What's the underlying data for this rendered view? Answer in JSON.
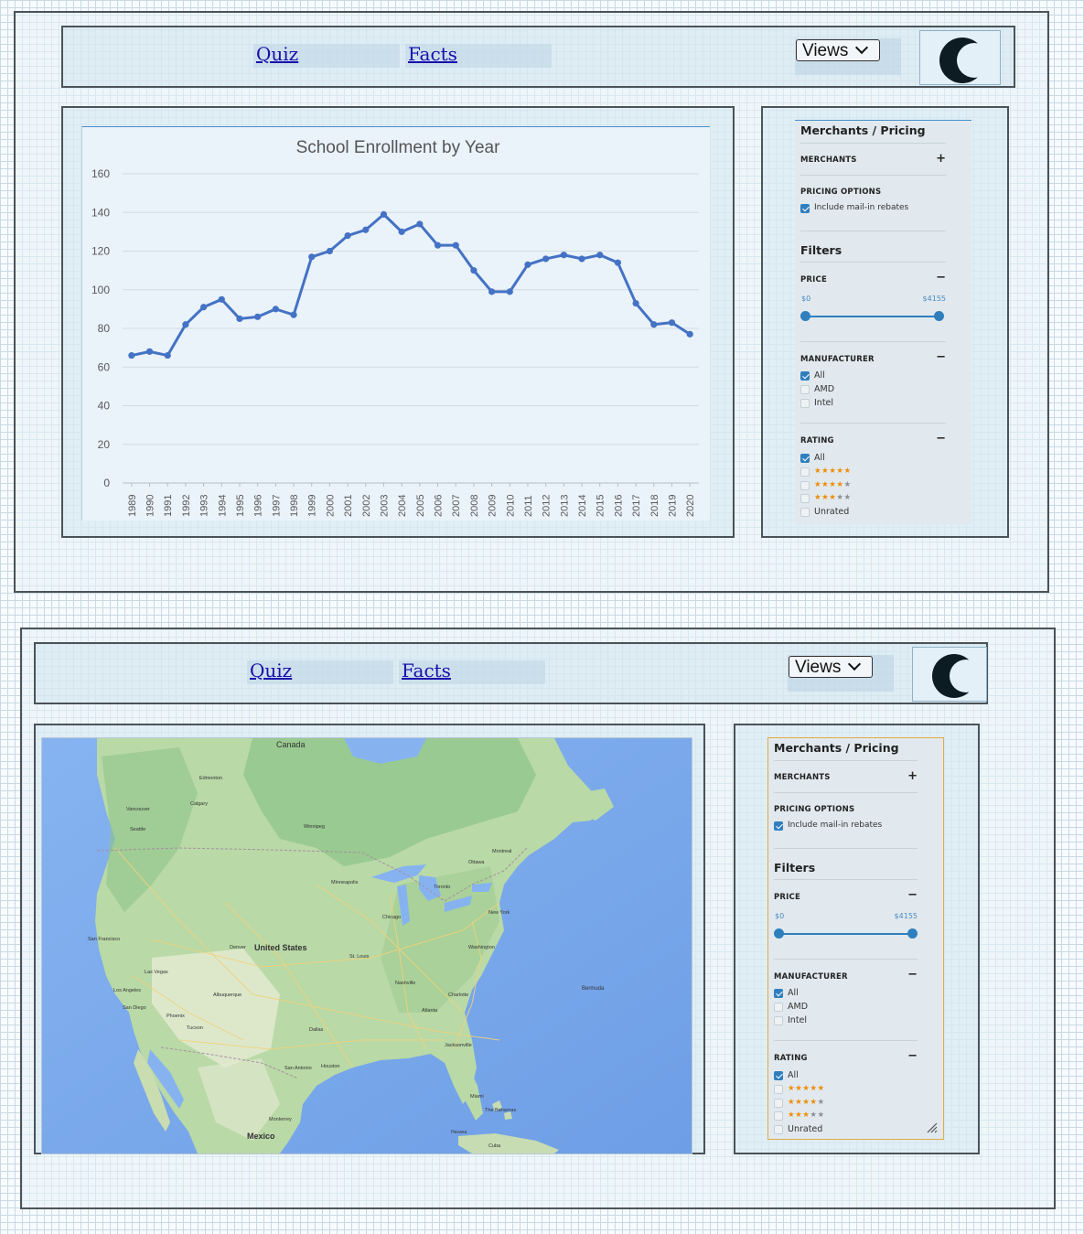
{
  "nav": {
    "quiz": "Quiz",
    "facts": "Facts",
    "views": "Views"
  },
  "chart_data": {
    "type": "line",
    "title": "School Enrollment by Year",
    "x": [
      1989,
      1990,
      1991,
      1992,
      1993,
      1994,
      1995,
      1996,
      1997,
      1998,
      1999,
      2000,
      2001,
      2002,
      2003,
      2004,
      2005,
      2006,
      2007,
      2008,
      2009,
      2010,
      2011,
      2012,
      2013,
      2014,
      2015,
      2016,
      2017,
      2018,
      2019,
      2020
    ],
    "y": [
      66,
      68,
      66,
      82,
      91,
      95,
      85,
      86,
      90,
      87,
      117,
      120,
      128,
      131,
      139,
      130,
      134,
      123,
      123,
      110,
      99,
      99,
      113,
      116,
      118,
      116,
      118,
      114,
      93,
      82,
      83,
      77
    ],
    "ylim": [
      0,
      160
    ],
    "yticks": [
      0,
      20,
      40,
      60,
      80,
      100,
      120,
      140,
      160
    ],
    "grid": true,
    "color": "#4472c4"
  },
  "map": {
    "labels": {
      "canada": "Canada",
      "united_states": "United States",
      "mexico": "Mexico",
      "bermuda": "Bermuda",
      "the_bahamas": "The Bahamas",
      "cuba": "Cuba",
      "chicago": "Chicago",
      "new_york": "New York",
      "washington": "Washington",
      "atlanta": "Atlanta",
      "dallas": "Dallas",
      "houston": "Houston",
      "denver": "Denver",
      "las_vegas": "Las Vegas",
      "los_angeles": "Los Angeles",
      "san_francisco": "San Francisco",
      "seattle": "Seattle",
      "vancouver": "Vancouver",
      "calgary": "Calgary",
      "edmonton": "Edmonton",
      "winnipeg": "Winnipeg",
      "toronto": "Toronto",
      "ottawa": "Ottawa",
      "montreal": "Montreal",
      "minneapolis": "Minneapolis",
      "st_louis": "St. Louis",
      "nashville": "Nashville",
      "charlotte": "Charlotte",
      "jacksonville": "Jacksonville",
      "miami": "Miami",
      "phoenix": "Phoenix",
      "albuquerque": "Albuquerque",
      "san_antonio": "San Antonio",
      "san_diego": "San Diego",
      "tucson": "Tucson",
      "monterrey": "Monterrey",
      "havana": "Havana"
    }
  },
  "filters": {
    "title": "Merchants / Pricing",
    "merchants_label": "MERCHANTS",
    "merchants_sign": "+",
    "pricing_label": "PRICING OPTIONS",
    "rebates_label": "Include mail-in rebates",
    "filters_title": "Filters",
    "price_label": "PRICE",
    "price_sign": "−",
    "price_min": "$0",
    "price_max": "$4155",
    "manufacturer_label": "MANUFACTURER",
    "manufacturer_sign": "−",
    "manufacturers": [
      "All",
      "AMD",
      "Intel"
    ],
    "rating_label": "RATING",
    "rating_sign": "−",
    "rating_all": "All",
    "rating_stars": [
      5,
      4,
      3
    ],
    "rating_unrated": "Unrated"
  }
}
